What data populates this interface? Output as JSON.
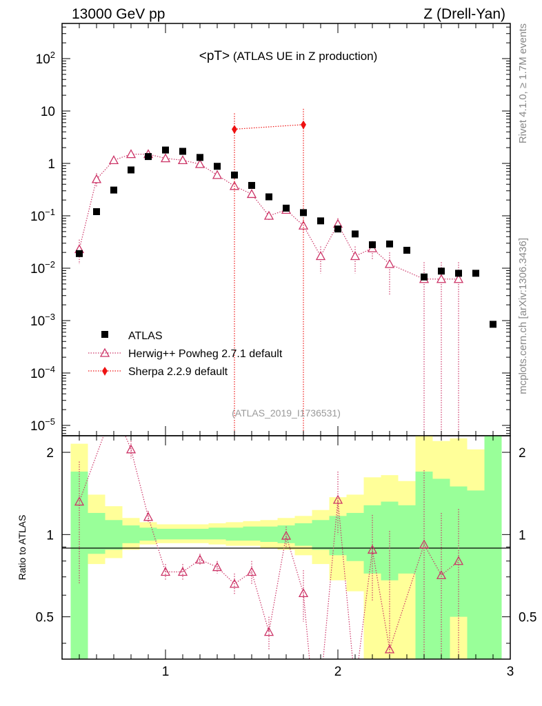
{
  "header": {
    "left": "13000 GeV pp",
    "right": "Z (Drell-Yan)",
    "panel_title_main": "<pT>",
    "panel_title_sub": " (ATLAS UE in Z production)",
    "watermark": "(ATLAS_2019_I1736531)",
    "side_rivet": "Rivet 4.1.0, ≥ 1.7M events",
    "side_mcplots": "mcplots.cern.ch [arXiv:1306.3436]"
  },
  "legend": {
    "atlas": "ATLAS",
    "herwig": "Herwig++ Powheg 2.7.1 default",
    "sherpa": "Sherpa 2.2.9 default"
  },
  "colors": {
    "data": "#000000",
    "herwig": "#cc3366",
    "sherpa": "#ee1111",
    "band_inner": "#99ff99",
    "band_outer": "#ffff99"
  },
  "chart_data": {
    "type": "scatter",
    "title": "<pT> (ATLAS UE in Z production)",
    "xlim": [
      0.4,
      3.0
    ],
    "ylim_log": [
      5e-06,
      500
    ],
    "ratio_ylabel": "Ratio to ATLAS",
    "ratio_ylim": [
      0.35,
      2.3
    ],
    "x_ticks": [
      "1",
      "2",
      "3"
    ],
    "y_ticks": [
      {
        "v": 100,
        "m": "10",
        "e": "2"
      },
      {
        "v": 10,
        "m": "10",
        "e": ""
      },
      {
        "v": 1,
        "m": "1",
        "e": ""
      },
      {
        "v": 0.1,
        "m": "10",
        "e": "−1"
      },
      {
        "v": 0.01,
        "m": "10",
        "e": "−2"
      },
      {
        "v": 0.001,
        "m": "10",
        "e": "−3"
      },
      {
        "v": 0.0001,
        "m": "10",
        "e": "−4"
      },
      {
        "v": 1e-05,
        "m": "10",
        "e": "−5"
      }
    ],
    "ratio_ticks": [
      "0.5",
      "1",
      "2"
    ],
    "series": [
      {
        "name": "ATLAS",
        "x": [
          0.5,
          0.6,
          0.7,
          0.8,
          0.9,
          1.0,
          1.1,
          1.2,
          1.3,
          1.4,
          1.5,
          1.6,
          1.7,
          1.8,
          1.9,
          2.0,
          2.1,
          2.2,
          2.3,
          2.4,
          2.5,
          2.6,
          2.7,
          2.8,
          2.9
        ],
        "y": [
          0.019,
          0.12,
          0.31,
          0.75,
          1.35,
          1.8,
          1.7,
          1.3,
          0.88,
          0.6,
          0.38,
          0.23,
          0.14,
          0.115,
          0.08,
          0.056,
          0.045,
          0.028,
          0.029,
          0.022,
          0.0068,
          0.0088,
          0.008,
          0.008,
          0.00085
        ]
      },
      {
        "name": "Herwig++ Powheg 2.7.1 default",
        "x": [
          0.5,
          0.6,
          0.7,
          0.8,
          0.9,
          1.0,
          1.1,
          1.2,
          1.3,
          1.4,
          1.5,
          1.6,
          1.7,
          1.8,
          1.9,
          2.0,
          2.1,
          2.2,
          2.3,
          2.5,
          2.6,
          2.7
        ],
        "y": [
          0.023,
          0.5,
          1.15,
          1.5,
          1.5,
          1.25,
          1.15,
          0.97,
          0.6,
          0.37,
          0.26,
          0.1,
          0.13,
          0.065,
          0.017,
          0.07,
          0.017,
          0.024,
          0.012,
          0.0062,
          0.0062,
          0.0062
        ],
        "y_low": [
          0.012,
          0.35,
          1.0,
          1.4,
          1.4,
          1.18,
          1.08,
          0.9,
          0.55,
          0.33,
          0.22,
          0.08,
          0.11,
          0.045,
          0.008,
          0.05,
          0.008,
          0.015,
          0.003,
          5e-06,
          5e-06,
          5e-06
        ],
        "y_high": [
          0.035,
          0.65,
          1.3,
          1.6,
          1.6,
          1.32,
          1.22,
          1.05,
          0.65,
          0.42,
          0.3,
          0.12,
          0.15,
          0.085,
          0.026,
          0.09,
          0.026,
          0.033,
          0.02,
          0.013,
          0.013,
          0.013
        ]
      },
      {
        "name": "Sherpa 2.2.9 default",
        "x": [
          1.4,
          1.8
        ],
        "y": [
          4.5,
          5.5
        ],
        "y_low": [
          5e-06,
          5e-06
        ],
        "y_high": [
          9.0,
          11.0
        ]
      }
    ],
    "ratio": {
      "herwig": {
        "x": [
          0.5,
          0.8,
          0.9,
          1.0,
          1.1,
          1.2,
          1.3,
          1.4,
          1.5,
          1.6,
          1.7,
          1.8,
          2.0,
          2.2,
          2.3,
          2.5,
          2.6,
          2.7
        ],
        "y": [
          1.32,
          2.05,
          1.16,
          0.73,
          0.73,
          0.81,
          0.76,
          0.66,
          0.73,
          0.44,
          0.99,
          0.61,
          1.34,
          0.88,
          0.38,
          0.92,
          0.71,
          0.8
        ],
        "y_low": [
          0.66,
          1.9,
          1.1,
          0.68,
          0.68,
          0.77,
          0.72,
          0.6,
          0.66,
          0.38,
          0.9,
          0.48,
          1.0,
          0.57,
          0.35,
          0.35,
          0.35,
          0.35
        ],
        "y_high": [
          1.85,
          2.2,
          1.22,
          0.78,
          0.78,
          0.85,
          0.8,
          0.72,
          0.8,
          0.5,
          1.07,
          0.74,
          1.7,
          1.18,
          1.03,
          1.72,
          1.2,
          1.24
        ],
        "points_above": [
          0.7
        ],
        "points_below": [
          1.85,
          1.9,
          2.1
        ]
      },
      "bands": [
        {
          "x0": 0.45,
          "x1": 0.55,
          "inner": [
            0.35,
            1.7
          ],
          "outer": [
            0.35,
            2.15
          ]
        },
        {
          "x0": 0.55,
          "x1": 0.65,
          "inner": [
            0.85,
            1.2
          ],
          "outer": [
            0.78,
            1.4
          ]
        },
        {
          "x0": 0.65,
          "x1": 0.75,
          "inner": [
            0.88,
            1.13
          ],
          "outer": [
            0.82,
            1.27
          ]
        },
        {
          "x0": 0.75,
          "x1": 0.85,
          "inner": [
            0.93,
            1.08
          ],
          "outer": [
            0.88,
            1.15
          ]
        },
        {
          "x0": 0.85,
          "x1": 0.95,
          "inner": [
            0.95,
            1.06
          ],
          "outer": [
            0.92,
            1.11
          ]
        },
        {
          "x0": 0.95,
          "x1": 1.05,
          "inner": [
            0.96,
            1.05
          ],
          "outer": [
            0.93,
            1.09
          ]
        },
        {
          "x0": 1.05,
          "x1": 1.15,
          "inner": [
            0.96,
            1.05
          ],
          "outer": [
            0.93,
            1.09
          ]
        },
        {
          "x0": 1.15,
          "x1": 1.25,
          "inner": [
            0.96,
            1.05
          ],
          "outer": [
            0.93,
            1.09
          ]
        },
        {
          "x0": 1.25,
          "x1": 1.35,
          "inner": [
            0.96,
            1.06
          ],
          "outer": [
            0.92,
            1.1
          ]
        },
        {
          "x0": 1.35,
          "x1": 1.45,
          "inner": [
            0.95,
            1.06
          ],
          "outer": [
            0.91,
            1.11
          ]
        },
        {
          "x0": 1.45,
          "x1": 1.55,
          "inner": [
            0.95,
            1.07
          ],
          "outer": [
            0.91,
            1.12
          ]
        },
        {
          "x0": 1.55,
          "x1": 1.65,
          "inner": [
            0.94,
            1.07
          ],
          "outer": [
            0.89,
            1.13
          ]
        },
        {
          "x0": 1.65,
          "x1": 1.75,
          "inner": [
            0.93,
            1.08
          ],
          "outer": [
            0.88,
            1.15
          ]
        },
        {
          "x0": 1.75,
          "x1": 1.85,
          "inner": [
            0.91,
            1.1
          ],
          "outer": [
            0.84,
            1.17
          ]
        },
        {
          "x0": 1.85,
          "x1": 1.95,
          "inner": [
            0.88,
            1.13
          ],
          "outer": [
            0.78,
            1.23
          ]
        },
        {
          "x0": 1.95,
          "x1": 2.05,
          "inner": [
            0.84,
            1.17
          ],
          "outer": [
            0.68,
            1.37
          ]
        },
        {
          "x0": 2.05,
          "x1": 2.15,
          "inner": [
            0.8,
            1.2
          ],
          "outer": [
            0.62,
            1.4
          ]
        },
        {
          "x0": 2.15,
          "x1": 2.25,
          "inner": [
            0.72,
            1.28
          ],
          "outer": [
            0.35,
            1.62
          ]
        },
        {
          "x0": 2.25,
          "x1": 2.35,
          "inner": [
            0.68,
            1.32
          ],
          "outer": [
            0.35,
            1.65
          ]
        },
        {
          "x0": 2.35,
          "x1": 2.45,
          "inner": [
            0.72,
            1.28
          ],
          "outer": [
            0.35,
            1.57
          ]
        },
        {
          "x0": 2.45,
          "x1": 2.55,
          "inner": [
            0.35,
            1.7
          ],
          "outer": [
            0.35,
            2.3
          ]
        },
        {
          "x0": 2.55,
          "x1": 2.65,
          "inner": [
            0.35,
            1.6
          ],
          "outer": [
            0.35,
            2.2
          ]
        },
        {
          "x0": 2.65,
          "x1": 2.75,
          "inner": [
            0.5,
            1.5
          ],
          "outer": [
            0.35,
            2.25
          ]
        },
        {
          "x0": 2.75,
          "x1": 2.85,
          "inner": [
            0.35,
            1.45
          ],
          "outer": [
            0.35,
            2.05
          ]
        },
        {
          "x0": 2.85,
          "x1": 2.95,
          "inner": [
            0.35,
            2.3
          ],
          "outer": [
            0.35,
            2.3
          ]
        }
      ]
    }
  }
}
